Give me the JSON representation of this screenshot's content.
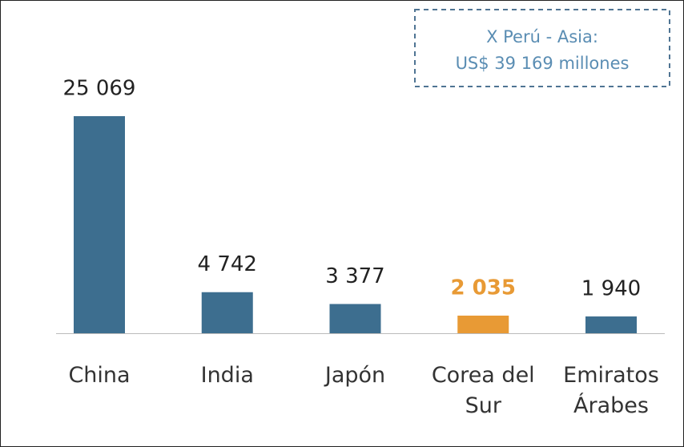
{
  "chart_data": {
    "type": "bar",
    "annotation": [
      "X Perú - Asia:",
      "US$ 39 169 millones"
    ],
    "categories": [
      "China",
      "India",
      "Japón",
      "Corea del Sur",
      "Emiratos Árabes"
    ],
    "values": [
      25069,
      4742,
      3377,
      2035,
      1940
    ],
    "value_labels": [
      "25 069",
      "4 742",
      "3 377",
      "2 035",
      "1 940"
    ],
    "color": "#3d6e8f",
    "colors": [
      "#3d6e8f",
      "#3d6e8f",
      "#3d6e8f",
      "#e89a35",
      "#3d6e8f"
    ]
  }
}
